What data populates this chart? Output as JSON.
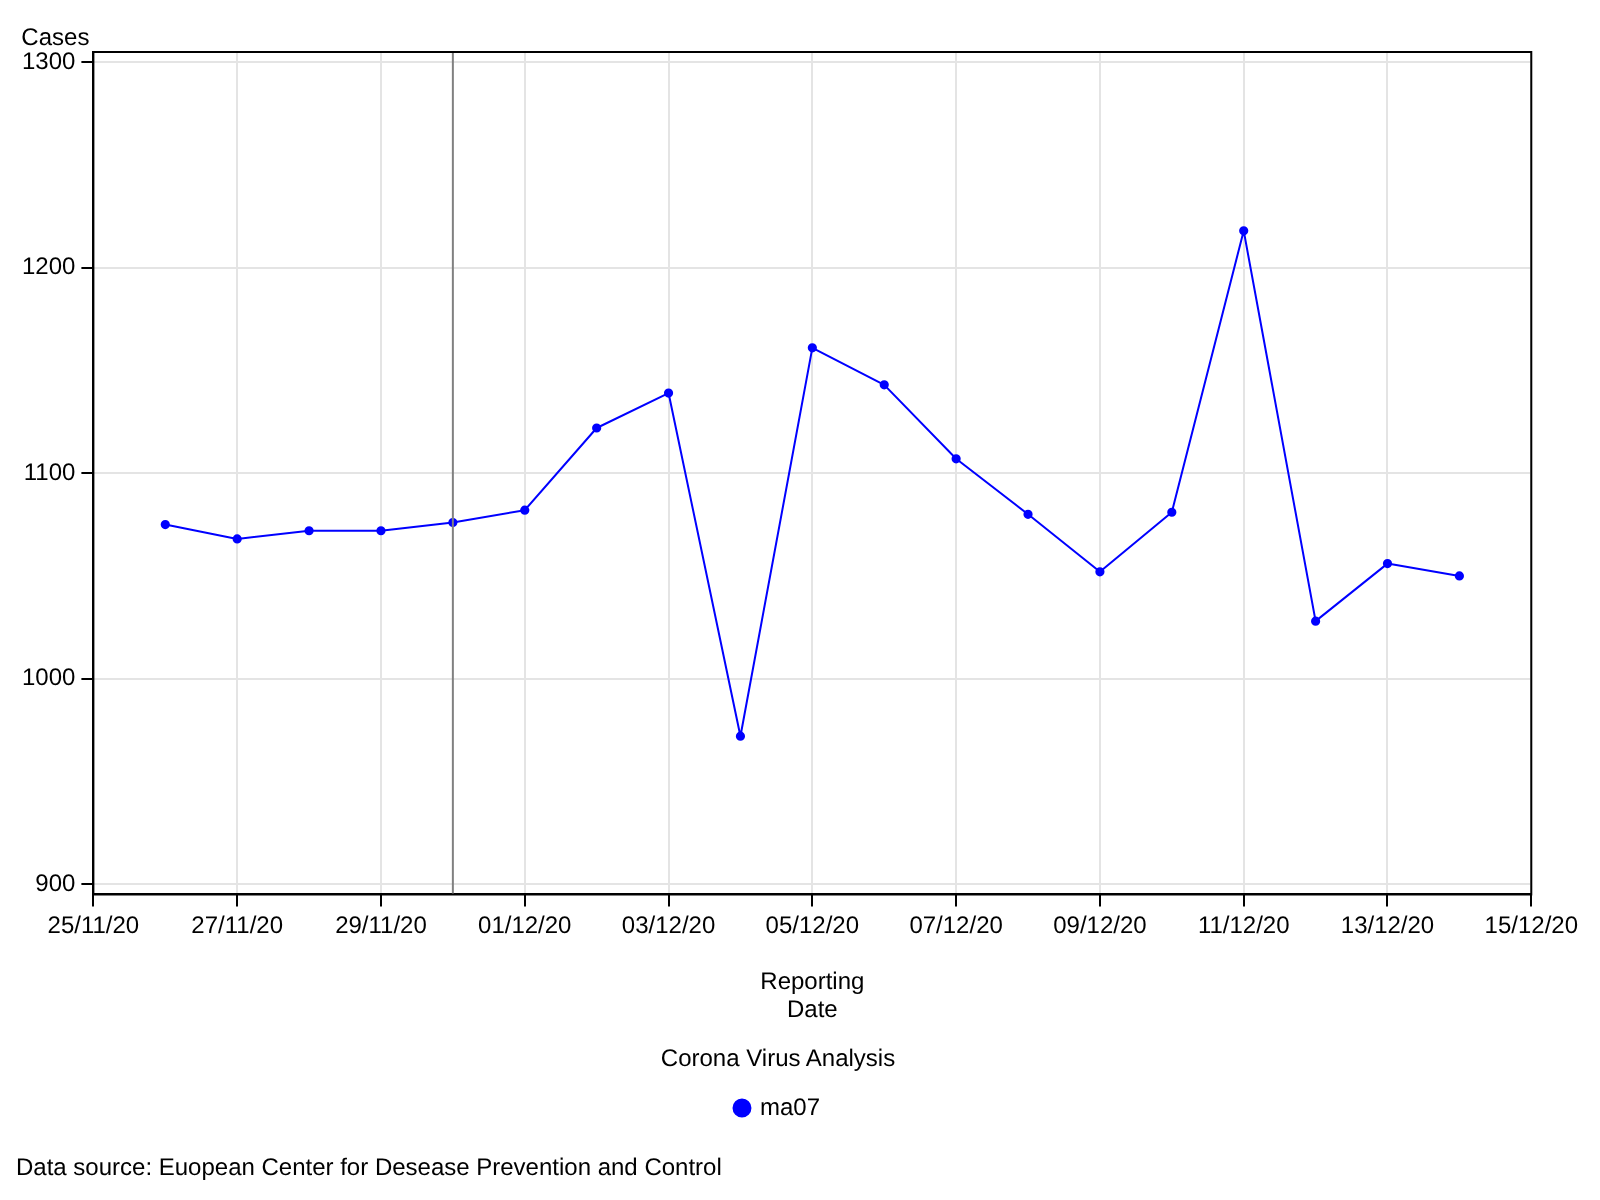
{
  "chart_data": {
    "type": "line",
    "ylabel": "Cases",
    "xlabel": "Reporting Date",
    "legend_title": "Corona Virus Analysis",
    "x": [
      "--11-26",
      "--11-27",
      "--11-28",
      "--11-29",
      "--11-30",
      "--12-01",
      "--12-02",
      "--12-03",
      "--12-04",
      "--12-05",
      "--12-06",
      "--12-07",
      "--12-08",
      "--12-09",
      "--12-10",
      "--12-11",
      "--12-12",
      "--12-13",
      "--12-14"
    ],
    "series": [
      {
        "name": "ma07",
        "color": "#0000ff",
        "values": [
          1075,
          1068,
          1072,
          1072,
          1076,
          1082,
          1122,
          1139,
          972,
          1161,
          1143,
          1107,
          1080,
          1052,
          1081,
          1218,
          1028,
          1056,
          1050
        ]
      }
    ],
    "xlim": [
      "--11-25",
      "--12-15"
    ],
    "xticks": [
      {
        "value": "--11-25",
        "label": "25/11/20"
      },
      {
        "value": "--11-27",
        "label": "27/11/20"
      },
      {
        "value": "--11-29",
        "label": "29/11/20"
      },
      {
        "value": "--12-01",
        "label": "01/12/20"
      },
      {
        "value": "--12-03",
        "label": "03/12/20"
      },
      {
        "value": "--12-05",
        "label": "05/12/20"
      },
      {
        "value": "--12-07",
        "label": "07/12/20"
      },
      {
        "value": "--12-09",
        "label": "09/12/20"
      },
      {
        "value": "--12-11",
        "label": "11/12/20"
      },
      {
        "value": "--12-13",
        "label": "13/12/20"
      },
      {
        "value": "--12-15",
        "label": "15/12/20"
      }
    ],
    "ylim": [
      895,
      1305
    ],
    "yticks": [
      900,
      1000,
      1100,
      1200,
      1300
    ],
    "ref_lines": [
      {
        "axis": "x",
        "value": "--11-30",
        "color": "#808080"
      }
    ],
    "grid": true,
    "legend": "bottom",
    "marker": "circle",
    "line_style": "solid",
    "annotations": [
      "Data source: Euopean Center for Desease Prevention and Control"
    ]
  }
}
